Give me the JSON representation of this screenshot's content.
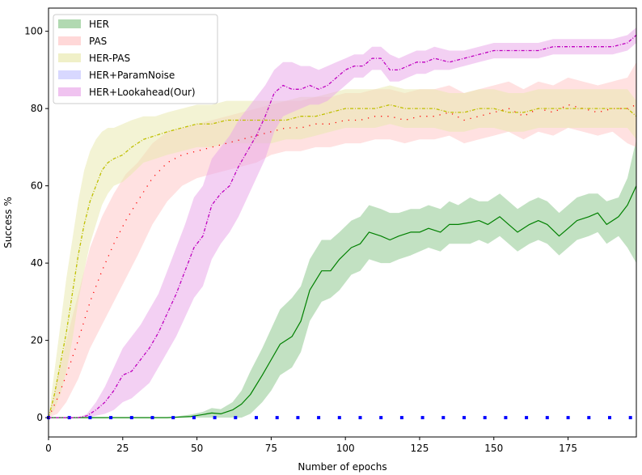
{
  "chart_data": {
    "type": "line",
    "title": "",
    "xlabel": "Number of epochs",
    "ylabel": "Success %",
    "xlim": [
      0,
      198
    ],
    "ylim": [
      -5,
      106
    ],
    "xticks": [
      0,
      25,
      50,
      75,
      100,
      125,
      150,
      175
    ],
    "yticks": [
      0,
      20,
      40,
      60,
      80,
      100
    ],
    "legend_position": "top-left",
    "series": [
      {
        "name": "HER",
        "color": "#008000",
        "fill": "#90c990",
        "style": "solid",
        "x": [
          0,
          40,
          48,
          52,
          55,
          58,
          62,
          65,
          68,
          72,
          75,
          78,
          82,
          85,
          88,
          92,
          95,
          98,
          102,
          105,
          108,
          112,
          115,
          118,
          122,
          125,
          128,
          132,
          135,
          138,
          142,
          145,
          148,
          152,
          155,
          158,
          162,
          165,
          168,
          172,
          175,
          178,
          182,
          185,
          188,
          192,
          195,
          198
        ],
        "mean": [
          0,
          0,
          0.3,
          0.8,
          1.2,
          1,
          2,
          3.5,
          6,
          11,
          15,
          19,
          21,
          25,
          33,
          38,
          38,
          41,
          44,
          45,
          48,
          47,
          46,
          47,
          48,
          48,
          49,
          48,
          50,
          50,
          50.5,
          51,
          50,
          52,
          50,
          48,
          50,
          51,
          50,
          47,
          49,
          51,
          52,
          53,
          50,
          52,
          55,
          60
        ],
        "lower": [
          0,
          0,
          0,
          0,
          0,
          0,
          0,
          0,
          1,
          4,
          7,
          11,
          13,
          17,
          25,
          30,
          31,
          33,
          37,
          38,
          41,
          40,
          40,
          41,
          42,
          43,
          44,
          43,
          45,
          45,
          45,
          46,
          45,
          47,
          45,
          43,
          45,
          46,
          45,
          42,
          44,
          46,
          47,
          48,
          45,
          47,
          44,
          40
        ],
        "upper": [
          0,
          0,
          0.8,
          1.5,
          2.5,
          2.2,
          4,
          7,
          12,
          18,
          23,
          28,
          31,
          34,
          41,
          46,
          46,
          48,
          51,
          52,
          55,
          54,
          53,
          53,
          54,
          54,
          55,
          54,
          56,
          55,
          57,
          56,
          56,
          58,
          56,
          54,
          56,
          57,
          56,
          53,
          55,
          57,
          58,
          58,
          56,
          57,
          62,
          72
        ]
      },
      {
        "name": "PAS",
        "color": "#ff0000",
        "fill": "#ffc8c8",
        "style": "dotted",
        "x": [
          0,
          3,
          6,
          10,
          14,
          18,
          22,
          26,
          30,
          35,
          40,
          45,
          50,
          55,
          60,
          65,
          70,
          75,
          80,
          85,
          90,
          95,
          100,
          105,
          110,
          115,
          120,
          125,
          130,
          135,
          140,
          145,
          150,
          155,
          160,
          165,
          170,
          175,
          180,
          185,
          190,
          195,
          198
        ],
        "mean": [
          0,
          5,
          11,
          20,
          30,
          38,
          45,
          51,
          56,
          62,
          66,
          68,
          69,
          70,
          71,
          72,
          73,
          74,
          75,
          75,
          76,
          76,
          77,
          77,
          78,
          78,
          77,
          78,
          78,
          79,
          77,
          78,
          79,
          80,
          78,
          80,
          79,
          81,
          80,
          79,
          80,
          80,
          81
        ],
        "lower": [
          0,
          1,
          4,
          10,
          18,
          24,
          30,
          36,
          42,
          50,
          56,
          60,
          62,
          63,
          64,
          65,
          66,
          68,
          69,
          69,
          70,
          70,
          71,
          71,
          72,
          72,
          71,
          72,
          72,
          73,
          71,
          72,
          73,
          74,
          72,
          74,
          73,
          75,
          74,
          73,
          74,
          71,
          70
        ],
        "upper": [
          0,
          10,
          20,
          32,
          44,
          52,
          58,
          63,
          66,
          71,
          74,
          75,
          76,
          77,
          78,
          79,
          80,
          81,
          82,
          82,
          83,
          83,
          84,
          84,
          85,
          85,
          84,
          85,
          85,
          86,
          84,
          85,
          86,
          87,
          85,
          87,
          86,
          88,
          87,
          86,
          87,
          88,
          92
        ]
      },
      {
        "name": "HER-PAS",
        "color": "#bfbf00",
        "fill": "#eaeab0",
        "style": "dashdot",
        "x": [
          0,
          2,
          4,
          6,
          8,
          10,
          12,
          14,
          16,
          18,
          20,
          22,
          25,
          28,
          32,
          36,
          40,
          45,
          50,
          55,
          60,
          65,
          70,
          75,
          80,
          85,
          90,
          95,
          100,
          105,
          110,
          115,
          120,
          125,
          130,
          135,
          140,
          145,
          150,
          155,
          160,
          165,
          170,
          175,
          180,
          185,
          190,
          195,
          198
        ],
        "mean": [
          0,
          6,
          14,
          22,
          32,
          42,
          50,
          56,
          60,
          64,
          66,
          67,
          68,
          70,
          72,
          73,
          74,
          75,
          76,
          76,
          77,
          77,
          77,
          77,
          77,
          78,
          78,
          79,
          80,
          80,
          80,
          81,
          80,
          80,
          80,
          79,
          79,
          80,
          80,
          79,
          79,
          80,
          80,
          80,
          80,
          80,
          80,
          80,
          78
        ],
        "lower": [
          0,
          2,
          6,
          12,
          20,
          30,
          38,
          45,
          50,
          55,
          58,
          60,
          61,
          63,
          66,
          67,
          68,
          69,
          70,
          70,
          71,
          71,
          71,
          71,
          72,
          72,
          73,
          74,
          75,
          75,
          75,
          76,
          75,
          75,
          75,
          74,
          74,
          75,
          75,
          74,
          74,
          75,
          75,
          75,
          75,
          75,
          75,
          75,
          72
        ],
        "upper": [
          0,
          12,
          24,
          36,
          46,
          56,
          64,
          69,
          72,
          74,
          75,
          75,
          76,
          77,
          78,
          78,
          79,
          80,
          81,
          81,
          82,
          82,
          82,
          82,
          82,
          83,
          83,
          84,
          85,
          85,
          85,
          86,
          85,
          85,
          85,
          84,
          84,
          85,
          85,
          84,
          84,
          85,
          85,
          85,
          85,
          85,
          85,
          85,
          82
        ]
      },
      {
        "name": "HER+ParamNoise",
        "color": "#0000ff",
        "fill": "#c8c8ff",
        "style": "dotted-square",
        "x": [
          0,
          7,
          14,
          21,
          28,
          35,
          42,
          49,
          56,
          63,
          70,
          77,
          84,
          91,
          98,
          105,
          112,
          119,
          126,
          133,
          140,
          147,
          154,
          161,
          168,
          175,
          182,
          189,
          196
        ],
        "mean": [
          0,
          0,
          0,
          0,
          0,
          0,
          0,
          0,
          0,
          0,
          0,
          0,
          0,
          0,
          0,
          0,
          0,
          0,
          0,
          0,
          0,
          0,
          0,
          0,
          0,
          0,
          0,
          0,
          0
        ],
        "lower": [
          0,
          0,
          0,
          0,
          0,
          0,
          0,
          0,
          0,
          0,
          0,
          0,
          0,
          0,
          0,
          0,
          0,
          0,
          0,
          0,
          0,
          0,
          0,
          0,
          0,
          0,
          0,
          0,
          0
        ],
        "upper": [
          0,
          0,
          0,
          0,
          0,
          0,
          0,
          0,
          0,
          0,
          0,
          0,
          0,
          0,
          0,
          0,
          0,
          0,
          0,
          0,
          0,
          0,
          0,
          0,
          0,
          0,
          0,
          0,
          0
        ]
      },
      {
        "name": "HER+Lookahead(Our)",
        "color": "#bf00bf",
        "fill": "#eaaaea",
        "style": "dashdot",
        "x": [
          0,
          10,
          13,
          16,
          19,
          22,
          25,
          28,
          31,
          34,
          37,
          40,
          43,
          46,
          49,
          52,
          55,
          58,
          61,
          64,
          67,
          70,
          73,
          76,
          79,
          82,
          85,
          88,
          91,
          94,
          97,
          100,
          103,
          106,
          109,
          112,
          115,
          118,
          121,
          124,
          127,
          130,
          135,
          140,
          145,
          150,
          155,
          160,
          165,
          170,
          175,
          180,
          185,
          190,
          195,
          198
        ],
        "mean": [
          0,
          0,
          0.5,
          2,
          4,
          7,
          11,
          12,
          15,
          18,
          22,
          27,
          32,
          38,
          44,
          47,
          55,
          58,
          60,
          65,
          69,
          73,
          78,
          84,
          86,
          85,
          85,
          86,
          85,
          86,
          88,
          90,
          91,
          91,
          93,
          93,
          90,
          90,
          91,
          92,
          92,
          93,
          92,
          93,
          94,
          95,
          95,
          95,
          95,
          96,
          96,
          96,
          96,
          96,
          97,
          99
        ],
        "lower": [
          0,
          0,
          0,
          0.5,
          1,
          2,
          4,
          5,
          7,
          9,
          13,
          17,
          21,
          26,
          31,
          34,
          41,
          45,
          48,
          52,
          57,
          62,
          67,
          74,
          78,
          79,
          80,
          81,
          81,
          82,
          84,
          86,
          88,
          88,
          90,
          90,
          87,
          87,
          88,
          89,
          89,
          90,
          90,
          91,
          92,
          93,
          93,
          93,
          93,
          94,
          94,
          94,
          94,
          94,
          95,
          97
        ],
        "upper": [
          0,
          0,
          1,
          4,
          8,
          13,
          18,
          21,
          24,
          28,
          32,
          38,
          44,
          50,
          57,
          60,
          67,
          70,
          73,
          77,
          80,
          83,
          86,
          90,
          92,
          92,
          91,
          91,
          90,
          91,
          92,
          93,
          94,
          94,
          96,
          96,
          94,
          93,
          94,
          95,
          95,
          96,
          95,
          95,
          96,
          97,
          97,
          97,
          97,
          98,
          98,
          98,
          98,
          98,
          99,
          101
        ]
      }
    ]
  }
}
